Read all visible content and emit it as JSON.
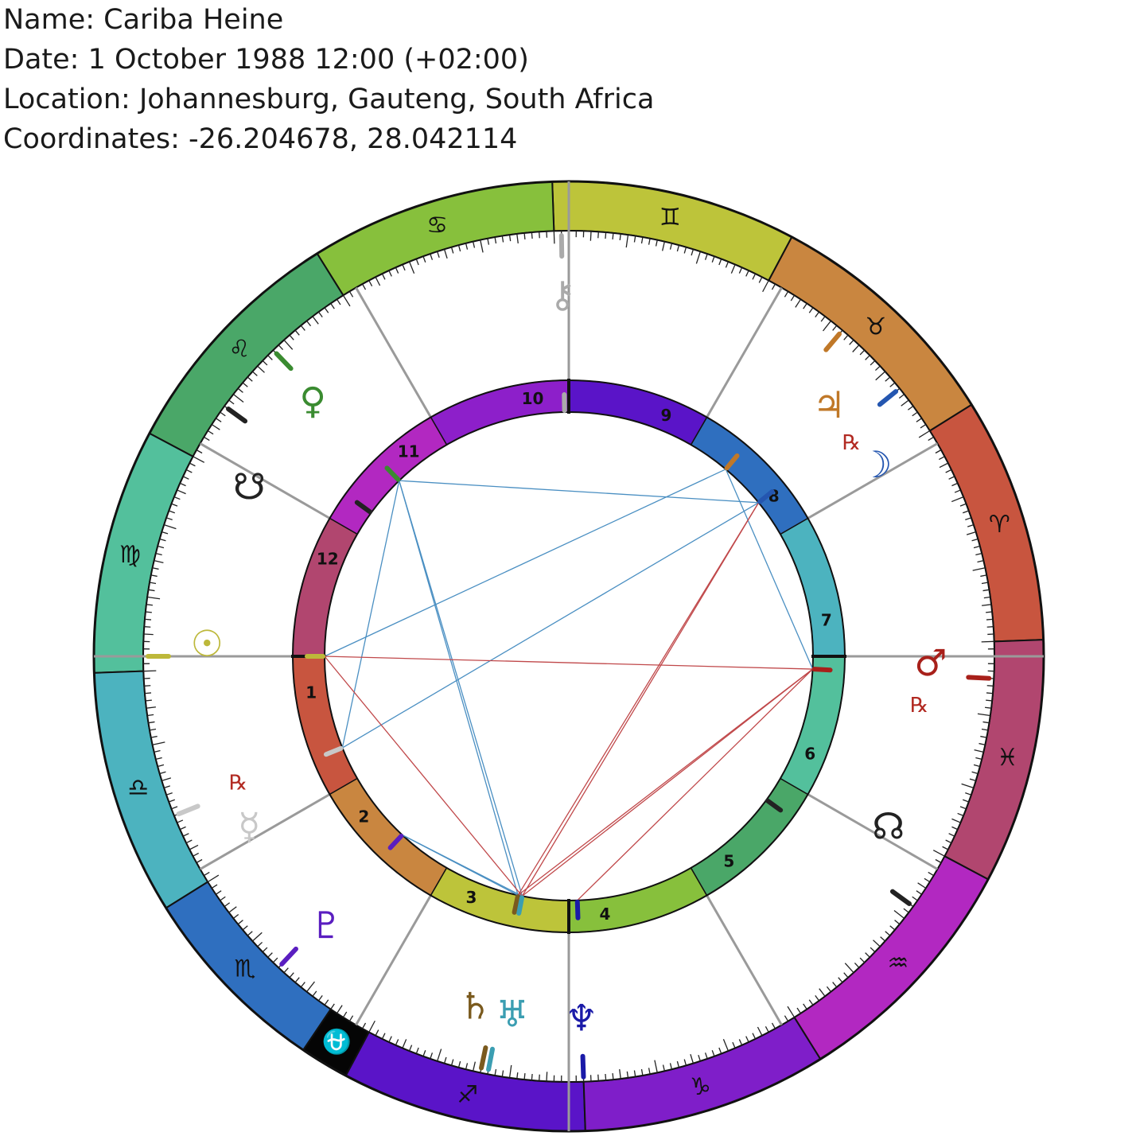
{
  "header": {
    "name_line": "Name: Cariba Heine",
    "date_line": "Date: 1 October 1988 12:00 (+02:00)",
    "location_line": "Location: Johannesburg, Gauteng, South Africa",
    "coordinates_line": "Coordinates: -26.204678, 28.042114"
  },
  "zodiac": [
    {
      "id": "aries",
      "glyph": "♈",
      "start": 0,
      "color": "#c8553f"
    },
    {
      "id": "taurus",
      "glyph": "♉",
      "start": 30,
      "color": "#c98640"
    },
    {
      "id": "gemini",
      "glyph": "♊",
      "start": 60,
      "color": "#bdc43a"
    },
    {
      "id": "cancer",
      "glyph": "♋",
      "start": 90,
      "color": "#87c03c"
    },
    {
      "id": "leo",
      "glyph": "♌",
      "start": 120,
      "color": "#4aa768"
    },
    {
      "id": "virgo",
      "glyph": "♍",
      "start": 150,
      "color": "#53c09c"
    },
    {
      "id": "libra",
      "glyph": "♎",
      "start": 180,
      "color": "#4cb3bf"
    },
    {
      "id": "scorpio",
      "glyph": "♏",
      "start": 210,
      "color": "#2f6fbf"
    },
    {
      "id": "ophiuchus",
      "glyph": "⛎",
      "start": 234,
      "end": 240,
      "color": "#050505",
      "glyph_color": "#ffffff"
    },
    {
      "id": "sagittarius",
      "glyph": "♐",
      "start": 240,
      "color": "#5a14c8"
    },
    {
      "id": "capricorn",
      "glyph": "♑",
      "start": 270,
      "color": "#7f1ec9"
    },
    {
      "id": "aquarius",
      "glyph": "♒",
      "start": 300,
      "color": "#b228c1"
    },
    {
      "id": "pisces",
      "glyph": "♓",
      "start": 330,
      "color": "#b1466f"
    }
  ],
  "houses": [
    {
      "label": "1",
      "color": "#c8553f"
    },
    {
      "label": "2",
      "color": "#c98640"
    },
    {
      "label": "3",
      "color": "#bdc43a"
    },
    {
      "label": "4",
      "color": "#87c03c"
    },
    {
      "label": "5",
      "color": "#4aa768"
    },
    {
      "label": "6",
      "color": "#53c09c"
    },
    {
      "label": "7",
      "color": "#4cb3bf"
    },
    {
      "label": "8",
      "color": "#2f6fbf"
    },
    {
      "label": "9",
      "color": "#5a14c8"
    },
    {
      "label": "10",
      "color": "#8d1fca"
    },
    {
      "label": "11",
      "color": "#b228c1"
    },
    {
      "label": "12",
      "color": "#b1466f"
    }
  ],
  "planets": [
    {
      "id": "sun",
      "glyph": "☉",
      "lon": 178,
      "glyph_lon": 176,
      "color": "#bdb83a",
      "retro": false
    },
    {
      "id": "moon",
      "glyph": "☽",
      "lon": 37,
      "glyph_lon": 30,
      "color": "#2456b0",
      "retro": false
    },
    {
      "id": "mercury",
      "glyph": "☿",
      "lon": 200,
      "glyph_lon": 206,
      "color": "#c8c8c8",
      "retro": true
    },
    {
      "id": "venus",
      "glyph": "♀",
      "lon": 132,
      "glyph_lon": 133,
      "color": "#3a8b30",
      "retro": false
    },
    {
      "id": "mars",
      "glyph": "♂",
      "lon": 355,
      "glyph_lon": 357,
      "color": "#a8201a",
      "retro": true
    },
    {
      "id": "jupiter",
      "glyph": "♃",
      "lon": 48,
      "glyph_lon": 42,
      "color": "#c07828",
      "retro": true
    },
    {
      "id": "saturn",
      "glyph": "♄",
      "lon": 256,
      "glyph_lon": 253,
      "color": "#7a5a1e",
      "retro": false
    },
    {
      "id": "uranus",
      "glyph": "♅",
      "lon": 257,
      "glyph_lon": 259,
      "color": "#3b9eb2",
      "retro": false
    },
    {
      "id": "neptune",
      "glyph": "♆",
      "lon": 270,
      "glyph_lon": 270,
      "color": "#1a1aa8",
      "retro": false
    },
    {
      "id": "pluto",
      "glyph": "♇",
      "lon": 225,
      "glyph_lon": 226,
      "color": "#5a1ec0",
      "retro": false
    },
    {
      "id": "chiron",
      "glyph": "⚷",
      "lon": 89,
      "glyph_lon": 89,
      "color": "#aaaaaa",
      "retro": false
    },
    {
      "id": "north-node",
      "glyph": "☊",
      "lon": 322,
      "glyph_lon": 330,
      "color": "#222222",
      "retro": false
    },
    {
      "id": "south-node",
      "glyph": "☋",
      "lon": 142,
      "glyph_lon": 150,
      "color": "#222222",
      "retro": false
    }
  ],
  "retrograde_symbol": "℞",
  "aspects": [
    {
      "from": "venus",
      "to": "moon",
      "color": "#4a8fc2"
    },
    {
      "from": "venus",
      "to": "uranus",
      "color": "#4a8fc2"
    },
    {
      "from": "venus",
      "to": "saturn",
      "color": "#4a8fc2"
    },
    {
      "from": "venus",
      "to": "mercury",
      "color": "#4a8fc2"
    },
    {
      "from": "sun",
      "to": "jupiter",
      "color": "#4a8fc2"
    },
    {
      "from": "mercury",
      "to": "moon",
      "color": "#4a8fc2"
    },
    {
      "from": "jupiter",
      "to": "mars",
      "color": "#4a8fc2"
    },
    {
      "from": "pluto",
      "to": "saturn",
      "color": "#4a8fc2"
    },
    {
      "from": "pluto",
      "to": "uranus",
      "color": "#4a8fc2"
    },
    {
      "from": "sun",
      "to": "mars",
      "color": "#c0484a"
    },
    {
      "from": "sun",
      "to": "uranus",
      "color": "#c0484a"
    },
    {
      "from": "moon",
      "to": "saturn",
      "color": "#c0484a"
    },
    {
      "from": "moon",
      "to": "uranus",
      "color": "#c0484a"
    },
    {
      "from": "mars",
      "to": "saturn",
      "color": "#c0484a"
    },
    {
      "from": "mars",
      "to": "uranus",
      "color": "#c0484a"
    },
    {
      "from": "mars",
      "to": "neptune",
      "color": "#c0484a"
    }
  ]
}
